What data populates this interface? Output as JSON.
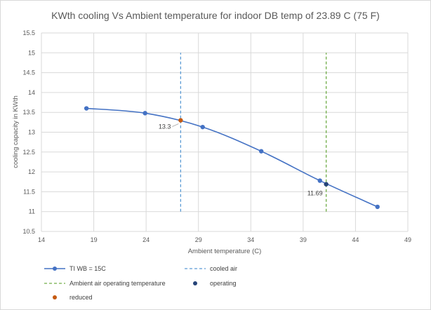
{
  "chart_data": {
    "type": "scatter",
    "title": "KWth cooling Vs Ambient temperature for indoor DB temp of 23.89 C (75 F)",
    "xlabel": "Ambient temperature (C)",
    "ylabel": "cooling capacity in KWth",
    "xlim": [
      14,
      49
    ],
    "ylim": [
      10.5,
      15.5
    ],
    "x_ticks": [
      14,
      19,
      24,
      29,
      34,
      39,
      44,
      49
    ],
    "y_ticks": [
      "10.5",
      "11",
      "11.5",
      "12",
      "12.5",
      "13",
      "13.5",
      "14",
      "14.5",
      "15",
      "15.5"
    ],
    "grid": "vertical",
    "legend_position": "bottom",
    "series": [
      {
        "name": "TI WB = 15C",
        "style": "line-markers",
        "color": "#4472c4",
        "x": [
          18.3,
          23.9,
          29.4,
          35.0,
          40.6,
          46.1
        ],
        "y": [
          13.6,
          13.48,
          13.13,
          12.52,
          11.78,
          11.12
        ]
      },
      {
        "name": "cooled air",
        "style": "dashed-vertical",
        "color": "#5b9bd5",
        "x": [
          27.3,
          27.3
        ],
        "y": [
          11.0,
          15.0
        ]
      },
      {
        "name": "Ambient air operating temperature",
        "style": "dashed-vertical",
        "color": "#70ad47",
        "x": [
          41.2,
          41.2
        ],
        "y": [
          11.0,
          15.0
        ]
      },
      {
        "name": "operating",
        "style": "marker",
        "color": "#264478",
        "x": [
          41.2
        ],
        "y": [
          11.69
        ],
        "label": "11.69"
      },
      {
        "name": "reduced",
        "style": "marker",
        "color": "#c55a11",
        "x": [
          27.3
        ],
        "y": [
          13.3
        ],
        "label": "13.3"
      }
    ]
  }
}
